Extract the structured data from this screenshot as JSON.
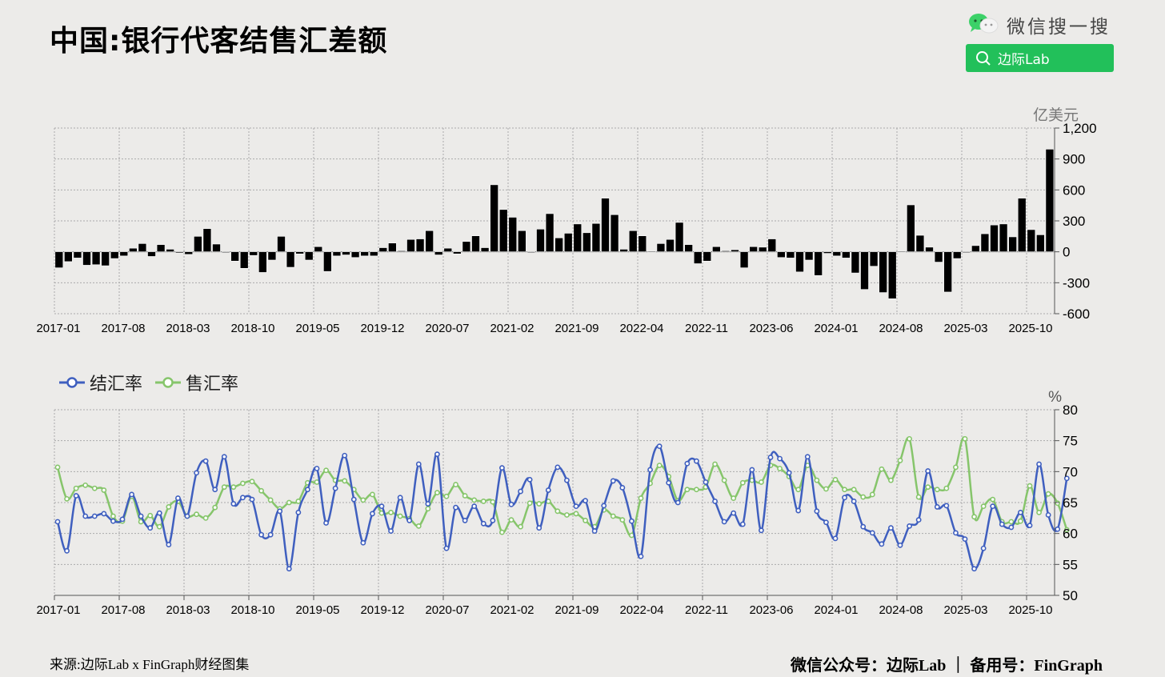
{
  "header": {
    "title": "中国:银行代客结售汇差额",
    "wechat_label": "微信搜一搜",
    "search_value": "边际Lab"
  },
  "footer": {
    "source": "来源:边际Lab x FinGraph财经图集",
    "account": "微信公众号：边际Lab ｜ 备用号：FinGraph"
  },
  "colors": {
    "background": "#ecebe9",
    "bar": "#000000",
    "settlement_line": "#3f5fbf",
    "sales_line": "#86c56b",
    "wechat_green": "#22c05a"
  },
  "chart_data": [
    {
      "type": "bar",
      "title": "中国:银行代客结售汇差额",
      "ylabel": "亿美元",
      "ylim": [
        -600,
        1200
      ],
      "yticks": [
        "1,200",
        "900",
        "600",
        "300",
        "0",
        "-300",
        "-600"
      ],
      "ytick_values": [
        1200,
        900,
        600,
        300,
        0,
        -300,
        -600
      ],
      "xtick_labels": [
        "2017-01",
        "2017-08",
        "2018-03",
        "2018-10",
        "2019-05",
        "2019-12",
        "2020-07",
        "2021-02",
        "2021-09",
        "2022-04",
        "2022-11",
        "2023-06",
        "2024-01",
        "2024-08",
        "2025-03",
        "2025-10"
      ],
      "grid": true,
      "start_month": "2017-01",
      "values": [
        -155,
        -95,
        -60,
        -130,
        -125,
        -135,
        -65,
        -40,
        35,
        80,
        -45,
        70,
        25,
        -10,
        -25,
        150,
        225,
        75,
        0,
        -90,
        -160,
        -35,
        -200,
        -80,
        150,
        -150,
        -20,
        -80,
        50,
        -190,
        -40,
        -30,
        -55,
        -40,
        -40,
        40,
        85,
        10,
        120,
        125,
        205,
        -30,
        35,
        -20,
        100,
        155,
        40,
        650,
        410,
        335,
        205,
        -5,
        220,
        370,
        135,
        180,
        270,
        185,
        275,
        520,
        360,
        25,
        205,
        155,
        5,
        80,
        120,
        285,
        70,
        -115,
        -90,
        50,
        10,
        20,
        -155,
        50,
        45,
        125,
        -55,
        -60,
        -195,
        -80,
        -230,
        -15,
        -40,
        -60,
        -205,
        -365,
        -140,
        -395,
        -455,
        5,
        455,
        160,
        45,
        -100,
        -390,
        -65,
        0,
        60,
        175,
        260,
        270,
        145,
        520,
        215,
        165,
        995
      ]
    },
    {
      "type": "line",
      "ylabel": "%",
      "ylim": [
        50,
        80
      ],
      "yticks": [
        "80",
        "75",
        "70",
        "65",
        "60",
        "55",
        "50"
      ],
      "ytick_values": [
        80,
        75,
        70,
        65,
        60,
        55,
        50
      ],
      "xtick_labels": [
        "2017-01",
        "2017-08",
        "2018-03",
        "2018-10",
        "2019-05",
        "2019-12",
        "2020-07",
        "2021-02",
        "2021-09",
        "2022-04",
        "2022-11",
        "2023-06",
        "2024-01",
        "2024-08",
        "2025-03",
        "2025-10"
      ],
      "grid": true,
      "legend_position": "top-left",
      "start_month": "2017-01",
      "series": [
        {
          "name": "结汇率",
          "color": "#3f5fbf",
          "values": [
            61.9,
            57.2,
            66.1,
            62.8,
            62.8,
            63.2,
            62.0,
            62.3,
            66.3,
            62.8,
            60.9,
            63.3,
            58.2,
            65.7,
            62.8,
            69.8,
            71.7,
            67.1,
            72.4,
            64.8,
            65.8,
            65.5,
            59.8,
            59.8,
            63.6,
            54.3,
            63.4,
            67.1,
            70.5,
            61.7,
            67.3,
            72.6,
            65.5,
            58.5,
            63.2,
            64.4,
            60.4,
            65.8,
            62.1,
            71.2,
            64.8,
            72.8,
            57.6,
            64.2,
            62.1,
            64.4,
            61.6,
            62.1,
            70.6,
            64.7,
            66.8,
            68.7,
            60.9,
            67.0,
            70.7,
            68.6,
            64.4,
            65.3,
            60.4,
            64.5,
            68.5,
            67.4,
            62.0,
            56.3,
            70.3,
            74.1,
            68.2,
            65.0,
            71.3,
            71.7,
            68.3,
            65.2,
            61.9,
            63.3,
            61.5,
            70.3,
            60.5,
            72.3,
            72.1,
            69.8,
            63.7,
            72.4,
            63.6,
            61.8,
            59.2,
            65.8,
            65.2,
            61.1,
            60.1,
            58.3,
            60.9,
            58.1,
            61.2,
            62.2,
            70.1,
            64.3,
            64.5,
            60.1,
            59.1,
            54.3,
            57.6,
            64.4,
            61.5,
            61.0,
            63.4,
            61.3,
            71.2,
            63.0,
            60.7,
            68.9
          ]
        },
        {
          "name": "售汇率",
          "color": "#86c56b",
          "values": [
            70.7,
            65.6,
            67.3,
            67.8,
            67.3,
            67.0,
            62.8,
            62.0,
            66.0,
            61.9,
            62.9,
            61.1,
            64.3,
            65.2,
            62.8,
            63.1,
            62.5,
            64.2,
            67.5,
            67.5,
            68.1,
            68.4,
            66.9,
            65.4,
            64.0,
            65.0,
            65.2,
            68.2,
            68.3,
            70.2,
            68.6,
            68.5,
            67.1,
            65.4,
            66.3,
            63.3,
            63.4,
            62.8,
            62.4,
            61.2,
            64.0,
            66.6,
            66.0,
            67.9,
            66.1,
            65.4,
            65.2,
            65.1,
            60.2,
            62.2,
            61.1,
            64.9,
            64.8,
            65.2,
            63.6,
            63.0,
            63.2,
            62.1,
            61.1,
            63.8,
            62.8,
            62.2,
            59.7,
            65.7,
            68.1,
            71.0,
            69.2,
            65.3,
            67.1,
            67.1,
            67.5,
            71.2,
            68.6,
            65.7,
            68.2,
            68.6,
            68.3,
            71.0,
            70.5,
            69.2,
            67.1,
            71.0,
            68.6,
            67.2,
            68.7,
            67.1,
            67.1,
            65.9,
            66.3,
            70.4,
            68.6,
            71.8,
            75.3,
            65.9,
            67.5,
            67.1,
            67.3,
            70.7,
            75.3,
            62.7,
            64.4,
            65.5,
            61.9,
            61.9,
            62.0,
            67.7,
            63.4,
            66.4,
            64.9,
            60.6
          ]
        }
      ]
    }
  ]
}
